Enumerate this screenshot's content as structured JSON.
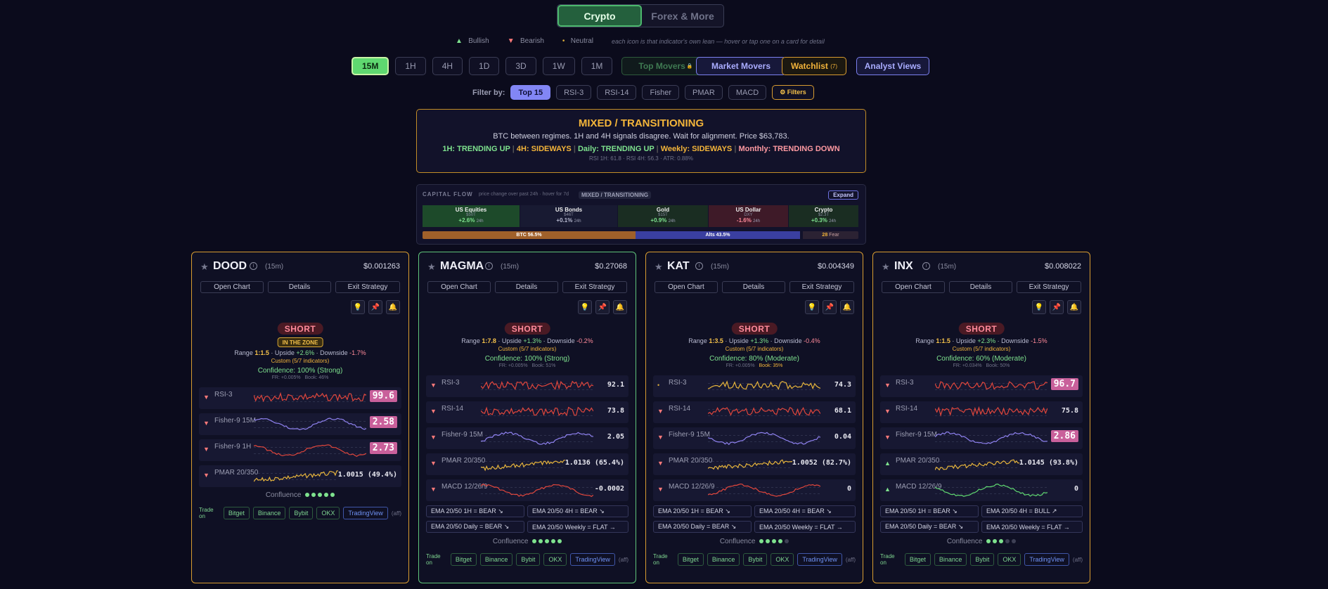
{
  "tabs": {
    "crypto": "Crypto",
    "forex": "Forex & More"
  },
  "legend": {
    "bullish": "Bullish",
    "bearish": "Bearish",
    "neutral": "Neutral",
    "note": "each icon is that indicator's own lean — hover or tap one on a card for detail"
  },
  "timeframes": [
    "15M",
    "1H",
    "4H",
    "1D",
    "3D",
    "1W",
    "1M"
  ],
  "buttons": {
    "top_movers": "Top Movers",
    "market_movers": "Market Movers",
    "watchlist": "Watchlist",
    "watchlist_count": "(7)",
    "analyst": "Analyst Views"
  },
  "filters": {
    "label": "Filter by:",
    "items": [
      "Top 15",
      "RSI-3",
      "RSI-14",
      "Fisher",
      "PMAR",
      "MACD"
    ],
    "more": "⚙ Filters"
  },
  "regime": {
    "title": "MIXED / TRANSITIONING",
    "desc": "BTC between regimes. 1H and 4H signals disagree. Wait for alignment. Price $63,783.",
    "s1": "1H: TRENDING UP",
    "s2": "4H: SIDEWAYS",
    "s3": "Daily: TRENDING UP",
    "s4": "Weekly: SIDEWAYS",
    "s5": "Monthly: TRENDING DOWN",
    "meta": "RSI 1H: 61.8 · RSI 4H: 56.3 · ATR: 0.88%"
  },
  "capital": {
    "label": "CAPITAL FLOW",
    "sub": "price change over past 24h · hover for 7d",
    "badge": "MIXED / TRANSITIONING",
    "expand": "Expand",
    "tiles": [
      {
        "name": "US Equities",
        "cap": "$50T",
        "chg": "+2.6%",
        "per": "24h",
        "color": "#1d4a2a",
        "tc": "#7ee28e"
      },
      {
        "name": "US Bonds",
        "cap": "$46T",
        "chg": "+0.1%",
        "per": "24h",
        "color": "#181a32",
        "tc": "#b8bad0"
      },
      {
        "name": "Gold",
        "cap": "$15T",
        "chg": "+0.9%",
        "per": "24h",
        "color": "#1a2d22",
        "tc": "#7ee28e"
      },
      {
        "name": "US Dollar",
        "cap": "DXY",
        "chg": "-1.6%",
        "per": "24h",
        "color": "#3e1a28",
        "tc": "#ff8a9a"
      },
      {
        "name": "Crypto",
        "cap": "$2.3T",
        "chg": "+0.3%",
        "per": "24h",
        "color": "#1a2d22",
        "tc": "#7ee28e"
      }
    ],
    "btc": "BTC 56.5%",
    "alts": "Alts 43.5%",
    "fear_val": "28",
    "fear": "Fear"
  },
  "cards": [
    {
      "sym": "DOOD",
      "tf": "(15m)",
      "price": "$0.001263",
      "signal": "SHORT",
      "zone": "IN THE ZONE",
      "range": "1:1.5",
      "upside": "+2.6%",
      "downside": "-1.7%",
      "custom": "Custom (5/7 indicators)",
      "conf": "Confidence: 100% (Strong)",
      "fr": "FR: +0.005%",
      "book": "Book: 46%",
      "inds": [
        {
          "n": "RSI-3",
          "v": "99.6",
          "big": true
        },
        {
          "n": "Fisher-9 15M",
          "v": "2.58",
          "big": true
        },
        {
          "n": "Fisher-9 1H",
          "v": "2.73",
          "big": true
        },
        {
          "n": "PMAR 20/350",
          "v": "1.0015 (49.4%)",
          "big": false
        }
      ],
      "ema": [],
      "dots": 5,
      "dots_on": 5
    },
    {
      "sym": "MAGMA",
      "tf": "(15m)",
      "price": "$0.27068",
      "signal": "SHORT",
      "zone": "",
      "range": "1:7.8",
      "upside": "+1.3%",
      "downside": "-0.2%",
      "custom": "Custom (5/7 indicators)",
      "conf": "Confidence: 100% (Strong)",
      "fr": "FR: +0.005%",
      "book": "Book: 51%",
      "inds": [
        {
          "n": "RSI-3",
          "v": "92.1",
          "big": false
        },
        {
          "n": "RSI-14",
          "v": "73.8",
          "big": false
        },
        {
          "n": "Fisher-9 15M",
          "v": "2.05",
          "big": false
        },
        {
          "n": "PMAR 20/350",
          "v": "1.0136 (65.4%)",
          "big": false
        },
        {
          "n": "MACD 12/26/9",
          "v": "-0.0002",
          "big": false
        }
      ],
      "ema": [
        "EMA 20/50 1H = BEAR ↘",
        "EMA 20/50 4H = BEAR ↘",
        "EMA 20/50 Daily = BEAR ↘",
        "EMA 20/50 Weekly = FLAT →"
      ],
      "dots": 5,
      "dots_on": 5
    },
    {
      "sym": "KAT",
      "tf": "(15m)",
      "price": "$0.004349",
      "signal": "SHORT",
      "zone": "",
      "range": "1:3.5",
      "upside": "+1.3%",
      "downside": "-0.4%",
      "custom": "Custom (5/7 indicators)",
      "conf": "Confidence: 80% (Moderate)",
      "fr": "FR: +0.005%",
      "book": "Book: 35%",
      "inds": [
        {
          "n": "RSI-3",
          "v": "74.3",
          "big": false
        },
        {
          "n": "RSI-14",
          "v": "68.1",
          "big": false
        },
        {
          "n": "Fisher-9 15M",
          "v": "0.04",
          "big": false
        },
        {
          "n": "PMAR 20/350",
          "v": "1.0052 (82.7%)",
          "big": false
        },
        {
          "n": "MACD 12/26/9",
          "v": "0",
          "big": false
        }
      ],
      "ema": [
        "EMA 20/50 1H = BEAR ↘",
        "EMA 20/50 4H = BEAR ↘",
        "EMA 20/50 Daily = BEAR ↘",
        "EMA 20/50 Weekly = FLAT →"
      ],
      "dots": 5,
      "dots_on": 4
    },
    {
      "sym": "INX",
      "tf": "(15m)",
      "price": "$0.008022",
      "signal": "SHORT",
      "zone": "",
      "range": "1:1.5",
      "upside": "+2.3%",
      "downside": "-1.5%",
      "custom": "Custom (5/7 indicators)",
      "conf": "Confidence: 60% (Moderate)",
      "fr": "FR: +0.034%",
      "book": "Book: 50%",
      "inds": [
        {
          "n": "RSI-3",
          "v": "96.7",
          "big": true
        },
        {
          "n": "RSI-14",
          "v": "75.8",
          "big": false
        },
        {
          "n": "Fisher-9 15M",
          "v": "2.86",
          "big": true
        },
        {
          "n": "PMAR 20/350",
          "v": "1.0145 (93.8%)",
          "big": false
        },
        {
          "n": "MACD 12/26/9",
          "v": "0",
          "big": false
        }
      ],
      "ema": [
        "EMA 20/50 1H = BEAR ↘",
        "EMA 20/50 4H = BULL ↗",
        "EMA 20/50 Daily = BEAR ↘",
        "EMA 20/50 Weekly = FLAT →"
      ],
      "dots": 5,
      "dots_on": 3
    }
  ],
  "card_buttons": {
    "chart": "Open Chart",
    "details": "Details",
    "exit": "Exit Strategy"
  },
  "confluence": "Confluence",
  "trade": {
    "label": "Trade on",
    "ex": [
      "Bitget",
      "Binance",
      "Bybit",
      "OKX",
      "TradingView"
    ],
    "aff": "(aff)"
  }
}
